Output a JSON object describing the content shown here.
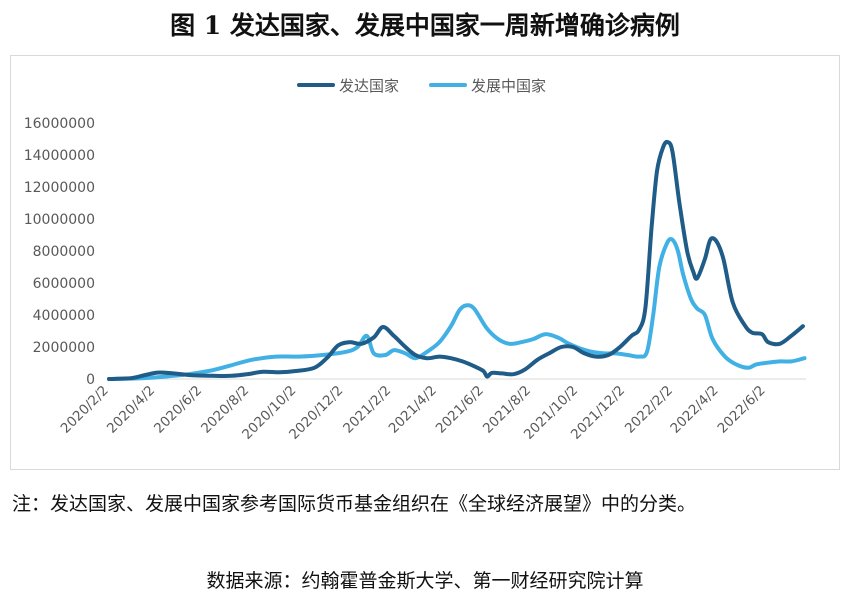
{
  "figure": {
    "title": "图 1  发达国家、发展中国家一周新增确诊病例",
    "note": "注：发达国家、发展中国家参考国际货币基金组织在《全球经济展望》中的分类。",
    "source": "数据来源：约翰霍普金斯大学、第一财经研究院计算"
  },
  "chart_data": {
    "type": "line",
    "title": "",
    "xlabel": "",
    "ylabel": "",
    "ylim": [
      0,
      16000000
    ],
    "yticks": [
      0,
      2000000,
      4000000,
      6000000,
      8000000,
      10000000,
      12000000,
      14000000,
      16000000
    ],
    "xlim": [
      "2020-02-02",
      "2022-07-24"
    ],
    "xtick_labels": [
      "2020/2/2",
      "2020/4/2",
      "2020/6/2",
      "2020/8/2",
      "2020/10/2",
      "2020/12/2",
      "2021/2/2",
      "2021/4/2",
      "2021/6/2",
      "2021/8/2",
      "2021/10/2",
      "2021/12/2",
      "2022/2/2",
      "2022/4/2",
      "2022/6/2"
    ],
    "grid": false,
    "legend_position": "top-center",
    "series": [
      {
        "name": "发达国家",
        "color": "#1f5c87",
        "points": [
          [
            "2020-02-02",
            0
          ],
          [
            "2020-03-01",
            50000
          ],
          [
            "2020-03-20",
            250000
          ],
          [
            "2020-04-05",
            400000
          ],
          [
            "2020-04-25",
            350000
          ],
          [
            "2020-05-20",
            230000
          ],
          [
            "2020-06-15",
            200000
          ],
          [
            "2020-07-10",
            200000
          ],
          [
            "2020-07-30",
            300000
          ],
          [
            "2020-08-20",
            450000
          ],
          [
            "2020-09-10",
            420000
          ],
          [
            "2020-10-01",
            500000
          ],
          [
            "2020-10-25",
            700000
          ],
          [
            "2020-11-10",
            1300000
          ],
          [
            "2020-11-25",
            2100000
          ],
          [
            "2020-12-10",
            2300000
          ],
          [
            "2020-12-25",
            2200000
          ],
          [
            "2021-01-10",
            2600000
          ],
          [
            "2021-01-22",
            3250000
          ],
          [
            "2021-02-05",
            2700000
          ],
          [
            "2021-02-20",
            2000000
          ],
          [
            "2021-03-05",
            1500000
          ],
          [
            "2021-03-20",
            1300000
          ],
          [
            "2021-04-05",
            1400000
          ],
          [
            "2021-04-20",
            1300000
          ],
          [
            "2021-05-05",
            1100000
          ],
          [
            "2021-05-20",
            800000
          ],
          [
            "2021-06-01",
            500000
          ],
          [
            "2021-06-06",
            150000
          ],
          [
            "2021-06-12",
            380000
          ],
          [
            "2021-06-25",
            350000
          ],
          [
            "2021-07-10",
            300000
          ],
          [
            "2021-07-25",
            600000
          ],
          [
            "2021-08-10",
            1200000
          ],
          [
            "2021-08-25",
            1600000
          ],
          [
            "2021-09-10",
            2000000
          ],
          [
            "2021-09-25",
            2000000
          ],
          [
            "2021-10-10",
            1600000
          ],
          [
            "2021-10-25",
            1400000
          ],
          [
            "2021-11-10",
            1500000
          ],
          [
            "2021-11-25",
            2000000
          ],
          [
            "2021-12-10",
            2700000
          ],
          [
            "2021-12-20",
            3100000
          ],
          [
            "2021-12-28",
            4500000
          ],
          [
            "2022-01-05",
            9500000
          ],
          [
            "2022-01-12",
            13000000
          ],
          [
            "2022-01-20",
            14500000
          ],
          [
            "2022-01-26",
            14800000
          ],
          [
            "2022-02-01",
            14200000
          ],
          [
            "2022-02-10",
            11000000
          ],
          [
            "2022-02-20",
            8000000
          ],
          [
            "2022-02-28",
            6700000
          ],
          [
            "2022-03-05",
            6300000
          ],
          [
            "2022-03-15",
            7500000
          ],
          [
            "2022-03-22",
            8700000
          ],
          [
            "2022-03-30",
            8600000
          ],
          [
            "2022-04-08",
            7500000
          ],
          [
            "2022-04-20",
            4800000
          ],
          [
            "2022-05-05",
            3400000
          ],
          [
            "2022-05-15",
            2900000
          ],
          [
            "2022-05-28",
            2800000
          ],
          [
            "2022-06-05",
            2300000
          ],
          [
            "2022-06-20",
            2200000
          ],
          [
            "2022-07-05",
            2700000
          ],
          [
            "2022-07-20",
            3300000
          ]
        ]
      },
      {
        "name": "发展中国家",
        "color": "#41b0e4",
        "points": [
          [
            "2020-02-02",
            0
          ],
          [
            "2020-03-15",
            50000
          ],
          [
            "2020-04-15",
            150000
          ],
          [
            "2020-05-15",
            300000
          ],
          [
            "2020-06-10",
            500000
          ],
          [
            "2020-07-05",
            800000
          ],
          [
            "2020-08-05",
            1200000
          ],
          [
            "2020-09-05",
            1400000
          ],
          [
            "2020-10-05",
            1400000
          ],
          [
            "2020-11-05",
            1500000
          ],
          [
            "2020-12-05",
            1700000
          ],
          [
            "2020-12-20",
            2000000
          ],
          [
            "2021-01-01",
            2700000
          ],
          [
            "2021-01-10",
            1600000
          ],
          [
            "2021-01-25",
            1500000
          ],
          [
            "2021-02-05",
            1800000
          ],
          [
            "2021-02-20",
            1600000
          ],
          [
            "2021-03-05",
            1300000
          ],
          [
            "2021-03-20",
            1700000
          ],
          [
            "2021-04-05",
            2300000
          ],
          [
            "2021-04-20",
            3300000
          ],
          [
            "2021-05-01",
            4300000
          ],
          [
            "2021-05-10",
            4600000
          ],
          [
            "2021-05-20",
            4400000
          ],
          [
            "2021-06-05",
            3200000
          ],
          [
            "2021-06-20",
            2500000
          ],
          [
            "2021-07-05",
            2200000
          ],
          [
            "2021-07-20",
            2300000
          ],
          [
            "2021-08-05",
            2500000
          ],
          [
            "2021-08-20",
            2800000
          ],
          [
            "2021-09-05",
            2600000
          ],
          [
            "2021-09-20",
            2200000
          ],
          [
            "2021-10-05",
            1900000
          ],
          [
            "2021-10-20",
            1700000
          ],
          [
            "2021-11-05",
            1600000
          ],
          [
            "2021-11-20",
            1600000
          ],
          [
            "2021-12-05",
            1500000
          ],
          [
            "2021-12-20",
            1400000
          ],
          [
            "2021-12-30",
            1700000
          ],
          [
            "2022-01-07",
            4000000
          ],
          [
            "2022-01-15",
            7000000
          ],
          [
            "2022-01-25",
            8500000
          ],
          [
            "2022-02-01",
            8700000
          ],
          [
            "2022-02-08",
            8000000
          ],
          [
            "2022-02-15",
            6500000
          ],
          [
            "2022-02-25",
            5000000
          ],
          [
            "2022-03-05",
            4400000
          ],
          [
            "2022-03-15",
            4000000
          ],
          [
            "2022-03-25",
            2500000
          ],
          [
            "2022-04-10",
            1400000
          ],
          [
            "2022-04-25",
            900000
          ],
          [
            "2022-05-10",
            700000
          ],
          [
            "2022-05-20",
            900000
          ],
          [
            "2022-06-01",
            1000000
          ],
          [
            "2022-06-20",
            1100000
          ],
          [
            "2022-07-05",
            1100000
          ],
          [
            "2022-07-22",
            1300000
          ]
        ]
      }
    ]
  }
}
